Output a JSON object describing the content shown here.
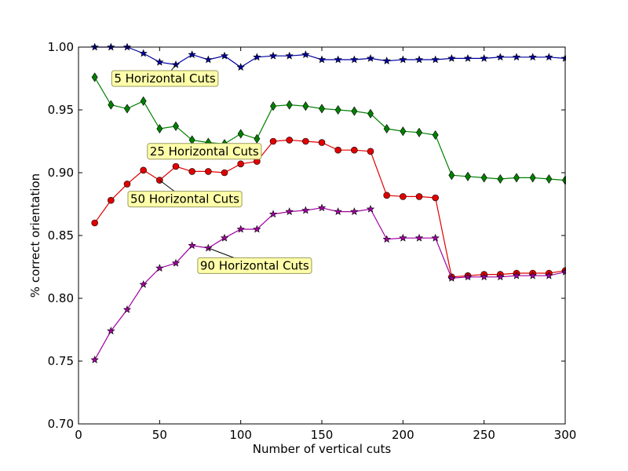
{
  "chart_data": {
    "type": "line",
    "title": "",
    "xlabel": "Number of vertical cuts",
    "ylabel": "% correct orientation",
    "xlim": [
      0,
      300
    ],
    "ylim": [
      0.7,
      1.0
    ],
    "x_ticks": [
      0,
      50,
      100,
      150,
      200,
      250,
      300
    ],
    "y_ticks": [
      0.7,
      0.75,
      0.8,
      0.85,
      0.9,
      0.95,
      1.0
    ],
    "x_tick_labels": [
      "0",
      "50",
      "100",
      "150",
      "200",
      "250",
      "300"
    ],
    "y_tick_labels": [
      "0.70",
      "0.75",
      "0.80",
      "0.85",
      "0.90",
      "0.95",
      "1.00"
    ],
    "grid": false,
    "x": [
      10,
      20,
      30,
      40,
      50,
      60,
      70,
      80,
      90,
      100,
      110,
      120,
      130,
      140,
      150,
      160,
      170,
      180,
      190,
      200,
      210,
      220,
      230,
      240,
      250,
      260,
      270,
      280,
      290,
      300
    ],
    "series": [
      {
        "color": "#0000a0",
        "marker": "star",
        "values": [
          1.0,
          1.0,
          1.0,
          0.995,
          0.988,
          0.986,
          0.994,
          0.99,
          0.993,
          0.984,
          0.992,
          0.993,
          0.993,
          0.994,
          0.99,
          0.99,
          0.99,
          0.991,
          0.989,
          0.99,
          0.99,
          0.99,
          0.991,
          0.991,
          0.991,
          0.992,
          0.992,
          0.992,
          0.992,
          0.991
        ]
      },
      {
        "color": "#007f00",
        "marker": "diamond",
        "values": [
          0.976,
          0.954,
          0.951,
          0.957,
          0.935,
          0.937,
          0.926,
          0.924,
          0.923,
          0.931,
          0.927,
          0.953,
          0.954,
          0.953,
          0.951,
          0.95,
          0.949,
          0.947,
          0.935,
          0.933,
          0.932,
          0.93,
          0.898,
          0.897,
          0.896,
          0.895,
          0.896,
          0.896,
          0.895,
          0.894
        ]
      },
      {
        "color": "#e00000",
        "marker": "circle",
        "values": [
          0.86,
          0.878,
          0.891,
          0.902,
          0.894,
          0.905,
          0.901,
          0.901,
          0.9,
          0.907,
          0.909,
          0.925,
          0.926,
          0.925,
          0.924,
          0.918,
          0.918,
          0.917,
          0.882,
          0.881,
          0.881,
          0.88,
          0.817,
          0.818,
          0.819,
          0.819,
          0.82,
          0.82,
          0.82,
          0.822
        ]
      },
      {
        "color": "#a000a0",
        "marker": "star",
        "values": [
          0.751,
          0.774,
          0.791,
          0.811,
          0.824,
          0.828,
          0.842,
          0.84,
          0.848,
          0.855,
          0.855,
          0.867,
          0.869,
          0.87,
          0.872,
          0.869,
          0.869,
          0.871,
          0.847,
          0.848,
          0.848,
          0.848,
          0.816,
          0.817,
          0.817,
          0.817,
          0.818,
          0.818,
          0.818,
          0.821
        ]
      }
    ],
    "annotations": [
      {
        "text": "5 Horizontal Cuts",
        "point": [
          60,
          0.986
        ],
        "label_at": [
          20,
          0.975
        ]
      },
      {
        "text": "25 Horizontal Cuts",
        "point": [
          90,
          0.923
        ],
        "label_at": [
          42,
          0.917
        ]
      },
      {
        "text": "50 Horizontal Cuts",
        "point": [
          50,
          0.894
        ],
        "label_at": [
          30,
          0.879
        ]
      },
      {
        "text": "90 Horizontal Cuts",
        "point": [
          80,
          0.84
        ],
        "label_at": [
          73,
          0.826
        ]
      }
    ],
    "annotation_box_color": "#ffffaa"
  }
}
